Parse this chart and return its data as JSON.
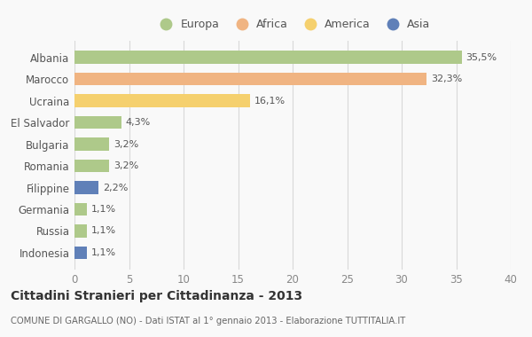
{
  "categories": [
    "Albania",
    "Marocco",
    "Ucraina",
    "El Salvador",
    "Bulgaria",
    "Romania",
    "Filippine",
    "Germania",
    "Russia",
    "Indonesia"
  ],
  "values": [
    35.5,
    32.3,
    16.1,
    4.3,
    3.2,
    3.2,
    2.2,
    1.1,
    1.1,
    1.1
  ],
  "labels": [
    "35,5%",
    "32,3%",
    "16,1%",
    "4,3%",
    "3,2%",
    "3,2%",
    "2,2%",
    "1,1%",
    "1,1%",
    "1,1%"
  ],
  "colors": [
    "#aec98a",
    "#f0b482",
    "#f5d06e",
    "#aec98a",
    "#aec98a",
    "#aec98a",
    "#6080b8",
    "#aec98a",
    "#aec98a",
    "#6080b8"
  ],
  "legend_labels": [
    "Europa",
    "Africa",
    "America",
    "Asia"
  ],
  "legend_colors": [
    "#aec98a",
    "#f0b482",
    "#f5d06e",
    "#6080b8"
  ],
  "xlim": [
    0,
    40
  ],
  "xticks": [
    0,
    5,
    10,
    15,
    20,
    25,
    30,
    35,
    40
  ],
  "title": "Cittadini Stranieri per Cittadinanza - 2013",
  "subtitle": "COMUNE DI GARGALLO (NO) - Dati ISTAT al 1° gennaio 2013 - Elaborazione TUTTITALIA.IT",
  "background_color": "#f9f9f9",
  "grid_color": "#d8d8d8",
  "bar_height": 0.6
}
